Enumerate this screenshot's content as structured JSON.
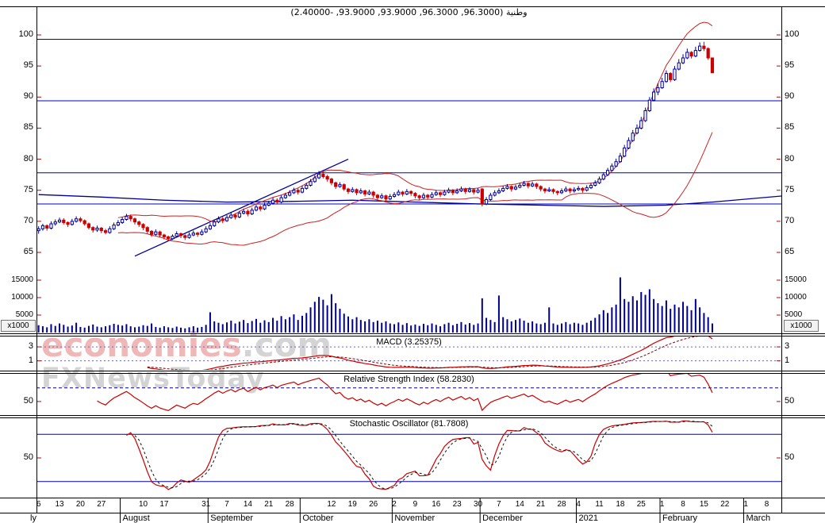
{
  "title": {
    "text": "وطنية (96.3000, 96.3000, 93.9000, 93.9000, -2.40000)"
  },
  "watermark": {
    "brand": "economies",
    "domain": ".com",
    "tagline": "FXNewsToday"
  },
  "panels": {
    "macd": {
      "title": "MACD (3.25375)"
    },
    "rsi": {
      "title": "Relative Strength Index (58.2830)"
    },
    "stoch": {
      "title": "Stochastic Oscillator (81.7808)"
    }
  },
  "chart_data": {
    "type": "candlestick",
    "symbol": "وطنية",
    "last_quote": {
      "open": 96.3,
      "high": 96.3,
      "low": 93.9,
      "close": 93.9,
      "change": -2.4
    },
    "price_ticks": [
      100,
      95,
      90,
      85,
      80,
      75,
      70,
      65
    ],
    "horizontal_lines": [
      99.3,
      89.4,
      77.8,
      72.8
    ],
    "volume_ticks": [
      15000,
      10000,
      5000
    ],
    "volume_unit": "x1000",
    "ohlc": [
      [
        68.5,
        69.2,
        68.0,
        68.8
      ],
      [
        68.8,
        69.6,
        68.5,
        69.3
      ],
      [
        69.3,
        69.5,
        68.5,
        68.9
      ],
      [
        68.9,
        70.0,
        68.7,
        69.6
      ],
      [
        69.6,
        70.3,
        69.3,
        69.9
      ],
      [
        69.9,
        70.6,
        69.7,
        70.2
      ],
      [
        70.2,
        70.5,
        69.5,
        69.8
      ],
      [
        69.8,
        70.0,
        69.1,
        69.5
      ],
      [
        69.5,
        70.4,
        69.3,
        70.0
      ],
      [
        70.0,
        70.8,
        69.8,
        70.4
      ],
      [
        70.4,
        70.7,
        69.8,
        70.1
      ],
      [
        70.1,
        70.3,
        69.3,
        69.6
      ],
      [
        69.6,
        69.8,
        68.7,
        69.0
      ],
      [
        69.0,
        69.2,
        68.2,
        68.6
      ],
      [
        68.6,
        69.3,
        68.3,
        68.9
      ],
      [
        68.9,
        69.1,
        68.1,
        68.5
      ],
      [
        68.5,
        68.8,
        67.9,
        68.2
      ],
      [
        68.2,
        69.2,
        68.0,
        68.8
      ],
      [
        68.8,
        69.8,
        68.6,
        69.4
      ],
      [
        69.4,
        70.2,
        69.2,
        69.8
      ],
      [
        69.8,
        70.7,
        69.6,
        70.3
      ],
      [
        70.3,
        71.2,
        70.1,
        70.8
      ],
      [
        70.8,
        71.1,
        70.0,
        70.4
      ],
      [
        70.4,
        70.6,
        69.5,
        69.9
      ],
      [
        69.9,
        70.1,
        69.1,
        69.5
      ],
      [
        69.5,
        69.7,
        68.6,
        69.0
      ],
      [
        69.0,
        69.2,
        68.0,
        68.4
      ],
      [
        68.4,
        68.6,
        67.5,
        67.9
      ],
      [
        67.9,
        68.7,
        67.7,
        68.3
      ],
      [
        68.3,
        68.5,
        67.4,
        67.8
      ],
      [
        67.8,
        68.0,
        67.1,
        67.5
      ],
      [
        67.5,
        67.7,
        66.8,
        67.2
      ],
      [
        67.2,
        67.9,
        67.0,
        67.6
      ],
      [
        67.6,
        68.4,
        67.4,
        68.0
      ],
      [
        68.0,
        68.2,
        67.3,
        67.7
      ],
      [
        67.7,
        67.9,
        67.0,
        67.4
      ],
      [
        67.4,
        68.2,
        67.2,
        67.8
      ],
      [
        67.8,
        68.5,
        67.6,
        68.1
      ],
      [
        68.1,
        68.3,
        67.5,
        67.9
      ],
      [
        67.9,
        68.7,
        67.7,
        68.3
      ],
      [
        68.3,
        69.2,
        68.1,
        68.8
      ],
      [
        68.8,
        69.7,
        68.6,
        69.3
      ],
      [
        69.3,
        70.3,
        69.1,
        69.9
      ],
      [
        69.9,
        70.8,
        69.7,
        70.4
      ],
      [
        70.4,
        70.7,
        69.7,
        70.1
      ],
      [
        70.1,
        71.0,
        69.9,
        70.6
      ],
      [
        70.6,
        71.4,
        70.4,
        71.0
      ],
      [
        71.0,
        71.3,
        70.3,
        70.7
      ],
      [
        70.7,
        71.7,
        70.5,
        71.3
      ],
      [
        71.3,
        72.0,
        71.1,
        71.6
      ],
      [
        71.6,
        71.9,
        70.8,
        71.2
      ],
      [
        71.2,
        72.2,
        71.0,
        71.8
      ],
      [
        71.8,
        72.7,
        71.6,
        72.3
      ],
      [
        72.3,
        72.6,
        71.6,
        72.0
      ],
      [
        72.0,
        73.0,
        71.8,
        72.6
      ],
      [
        72.6,
        73.3,
        72.4,
        72.9
      ],
      [
        72.9,
        73.8,
        72.7,
        73.4
      ],
      [
        73.4,
        73.7,
        72.7,
        73.1
      ],
      [
        73.1,
        74.2,
        72.9,
        73.8
      ],
      [
        73.8,
        74.6,
        73.6,
        74.2
      ],
      [
        74.2,
        75.0,
        74.0,
        74.6
      ],
      [
        74.6,
        75.4,
        74.4,
        75.0
      ],
      [
        75.0,
        75.3,
        74.3,
        74.7
      ],
      [
        74.7,
        75.7,
        74.5,
        75.3
      ],
      [
        75.3,
        76.2,
        75.1,
        75.8
      ],
      [
        75.8,
        76.8,
        75.6,
        76.4
      ],
      [
        76.4,
        77.4,
        76.2,
        77.0
      ],
      [
        77.0,
        78.1,
        76.8,
        77.6
      ],
      [
        77.6,
        78.3,
        76.9,
        77.2
      ],
      [
        77.2,
        77.5,
        76.4,
        76.8
      ],
      [
        76.8,
        77.0,
        75.8,
        76.2
      ],
      [
        76.2,
        76.4,
        75.2,
        75.6
      ],
      [
        75.6,
        76.3,
        75.4,
        75.9
      ],
      [
        75.9,
        76.1,
        74.9,
        75.2
      ],
      [
        75.2,
        75.4,
        74.4,
        74.8
      ],
      [
        74.8,
        75.5,
        74.6,
        75.1
      ],
      [
        75.1,
        75.3,
        74.2,
        74.6
      ],
      [
        74.6,
        75.3,
        74.4,
        74.9
      ],
      [
        74.9,
        75.1,
        74.0,
        74.4
      ],
      [
        74.4,
        75.1,
        74.2,
        74.7
      ],
      [
        74.7,
        74.9,
        73.8,
        74.2
      ],
      [
        74.2,
        74.4,
        73.4,
        73.8
      ],
      [
        73.8,
        74.5,
        73.6,
        74.1
      ],
      [
        74.1,
        74.3,
        73.2,
        73.6
      ],
      [
        73.6,
        74.4,
        73.4,
        74.0
      ],
      [
        74.0,
        74.7,
        73.8,
        74.3
      ],
      [
        74.3,
        75.1,
        74.1,
        74.7
      ],
      [
        74.7,
        74.9,
        74.0,
        74.4
      ],
      [
        74.4,
        75.2,
        74.2,
        74.8
      ],
      [
        74.8,
        75.0,
        74.1,
        74.5
      ],
      [
        74.5,
        74.7,
        73.7,
        74.1
      ],
      [
        74.1,
        74.3,
        73.4,
        73.8
      ],
      [
        73.8,
        74.6,
        73.6,
        74.2
      ],
      [
        74.2,
        74.4,
        73.5,
        73.9
      ],
      [
        73.9,
        74.7,
        73.7,
        74.3
      ],
      [
        74.3,
        75.0,
        74.1,
        74.6
      ],
      [
        74.6,
        74.8,
        73.9,
        74.3
      ],
      [
        74.3,
        75.1,
        74.1,
        74.7
      ],
      [
        74.7,
        75.4,
        74.5,
        75.0
      ],
      [
        75.0,
        75.2,
        74.2,
        74.6
      ],
      [
        74.6,
        75.3,
        74.4,
        74.9
      ],
      [
        74.9,
        75.6,
        74.7,
        75.2
      ],
      [
        75.2,
        75.4,
        74.4,
        74.8
      ],
      [
        74.8,
        75.5,
        74.6,
        75.1
      ],
      [
        75.1,
        75.3,
        74.3,
        74.7
      ],
      [
        74.7,
        75.4,
        74.5,
        75.0
      ],
      [
        75.2,
        75.4,
        72.4,
        72.8
      ],
      [
        72.8,
        73.9,
        72.6,
        73.5
      ],
      [
        73.5,
        74.6,
        73.3,
        74.2
      ],
      [
        74.2,
        75.0,
        74.0,
        74.6
      ],
      [
        74.6,
        75.3,
        74.4,
        74.9
      ],
      [
        74.9,
        75.7,
        74.7,
        75.3
      ],
      [
        75.3,
        76.0,
        75.1,
        75.6
      ],
      [
        75.6,
        75.8,
        74.8,
        75.2
      ],
      [
        75.2,
        75.9,
        75.0,
        75.5
      ],
      [
        75.5,
        76.2,
        75.3,
        75.8
      ],
      [
        75.8,
        76.5,
        75.6,
        76.1
      ],
      [
        76.1,
        76.3,
        75.3,
        75.7
      ],
      [
        75.7,
        76.4,
        75.5,
        76.0
      ],
      [
        76.0,
        76.2,
        75.2,
        75.6
      ],
      [
        75.6,
        75.8,
        74.8,
        75.2
      ],
      [
        75.2,
        75.4,
        74.5,
        74.9
      ],
      [
        74.9,
        75.5,
        74.7,
        75.1
      ],
      [
        75.1,
        75.3,
        74.4,
        74.8
      ],
      [
        74.8,
        75.0,
        74.2,
        74.6
      ],
      [
        74.6,
        75.3,
        74.4,
        74.9
      ],
      [
        74.9,
        75.6,
        74.7,
        75.2
      ],
      [
        75.2,
        75.4,
        74.5,
        74.9
      ],
      [
        74.9,
        75.5,
        74.6,
        75.1
      ],
      [
        75.1,
        75.7,
        74.9,
        75.3
      ],
      [
        75.3,
        75.5,
        74.6,
        75.0
      ],
      [
        75.0,
        75.8,
        74.8,
        75.4
      ],
      [
        75.4,
        76.2,
        75.2,
        75.8
      ],
      [
        75.8,
        76.6,
        75.6,
        76.2
      ],
      [
        76.2,
        77.2,
        76.0,
        76.8
      ],
      [
        76.8,
        77.9,
        76.6,
        77.5
      ],
      [
        77.5,
        78.6,
        77.3,
        78.2
      ],
      [
        78.2,
        79.3,
        78.0,
        78.9
      ],
      [
        78.9,
        80.1,
        78.7,
        79.6
      ],
      [
        79.6,
        81.0,
        79.4,
        80.5
      ],
      [
        80.5,
        82.3,
        80.3,
        81.8
      ],
      [
        81.8,
        83.5,
        81.6,
        83.0
      ],
      [
        83.0,
        84.7,
        82.8,
        84.2
      ],
      [
        84.2,
        85.6,
        84.0,
        85.0
      ],
      [
        85.0,
        86.8,
        84.8,
        86.2
      ],
      [
        86.2,
        88.3,
        86.0,
        87.8
      ],
      [
        87.8,
        90.0,
        87.6,
        89.5
      ],
      [
        89.5,
        91.4,
        89.3,
        90.8
      ],
      [
        90.8,
        92.2,
        90.3,
        91.5
      ],
      [
        91.5,
        93.1,
        91.3,
        92.5
      ],
      [
        92.5,
        94.3,
        92.3,
        93.8
      ],
      [
        93.8,
        94.0,
        92.4,
        92.8
      ],
      [
        92.8,
        95.0,
        92.6,
        94.5
      ],
      [
        94.5,
        96.1,
        94.3,
        95.5
      ],
      [
        95.5,
        96.9,
        95.3,
        96.3
      ],
      [
        96.3,
        97.8,
        96.1,
        97.2
      ],
      [
        97.2,
        97.4,
        96.2,
        96.6
      ],
      [
        96.6,
        98.1,
        96.4,
        97.5
      ],
      [
        97.5,
        98.8,
        97.3,
        98.2
      ],
      [
        98.2,
        98.9,
        97.4,
        97.8
      ],
      [
        97.8,
        98.0,
        96.0,
        96.3
      ],
      [
        96.3,
        96.3,
        93.9,
        93.9
      ]
    ],
    "volume": [
      2100,
      1800,
      1500,
      2400,
      1900,
      2600,
      2200,
      1700,
      2000,
      2800,
      1600,
      1400,
      1900,
      2300,
      1700,
      1500,
      1800,
      2100,
      2500,
      2200,
      2000,
      2400,
      1800,
      1500,
      1700,
      2100,
      1900,
      2600,
      1600,
      1400,
      1800,
      1500,
      1300,
      1700,
      1400,
      1200,
      1500,
      1800,
      1400,
      1600,
      2200,
      5800,
      3200,
      2800,
      2400,
      2900,
      3400,
      2600,
      3100,
      3600,
      2700,
      3300,
      3900,
      2800,
      3500,
      3000,
      4200,
      3400,
      4700,
      3800,
      4400,
      5200,
      3600,
      4800,
      5600,
      7200,
      8800,
      10200,
      9400,
      7800,
      11000,
      8400,
      6800,
      5400,
      4600,
      3800,
      4400,
      3600,
      3200,
      3800,
      3000,
      3400,
      2800,
      3200,
      2600,
      2400,
      2900,
      2200,
      2700,
      2000,
      2300,
      1900,
      2500,
      2100,
      2600,
      2200,
      1800,
      2400,
      2800,
      2100,
      2500,
      3000,
      2300,
      2700,
      2200,
      2600,
      9800,
      4200,
      3600,
      3000,
      10600,
      4400,
      3800,
      3200,
      3600,
      4000,
      3400,
      2800,
      3200,
      2600,
      2400,
      2800,
      7200,
      2600,
      2200,
      2600,
      3000,
      2400,
      2800,
      2600,
      2200,
      2800,
      3400,
      4200,
      5200,
      6400,
      5600,
      7200,
      8000,
      15800,
      9600,
      8800,
      10400,
      9200,
      11600,
      10800,
      12400,
      9600,
      8400,
      7600,
      9200,
      6800,
      8000,
      7200,
      8800,
      7600,
      6400,
      9600,
      7200,
      5600,
      4400,
      2600
    ],
    "overlays": {
      "ma_blue": [
        [
          0,
          74.3
        ],
        [
          15,
          73.9
        ],
        [
          30,
          73.4
        ],
        [
          45,
          73.1
        ],
        [
          60,
          73.2
        ],
        [
          75,
          73.4
        ],
        [
          90,
          73.1
        ],
        [
          105,
          72.8
        ],
        [
          120,
          72.6
        ],
        [
          135,
          72.4
        ],
        [
          150,
          72.6
        ],
        [
          161,
          73.1
        ],
        [
          178,
          74.1
        ]
      ],
      "trendline_blue": [
        [
          23,
          64.4
        ],
        [
          74,
          80.0
        ]
      ],
      "bollinger": {
        "period": 20,
        "stddev": 2
      }
    },
    "indicators": {
      "macd": {
        "fast": 12,
        "slow": 26,
        "signal": 9,
        "last": 3.25375,
        "grid": [
          3,
          1
        ]
      },
      "rsi": {
        "period": 14,
        "last": 58.283,
        "grid": [
          50
        ],
        "dashed_level": 70
      },
      "stoch": {
        "period": 20,
        "slowing": 3,
        "signal_period": 3,
        "last": 81.7808,
        "grid": [
          50
        ],
        "levels": [
          80,
          20
        ]
      }
    },
    "x_ticks": [
      {
        "d": 0,
        "label": "6"
      },
      {
        "d": 5,
        "label": "13"
      },
      {
        "d": 10,
        "label": "20"
      },
      {
        "d": 15,
        "label": "27"
      },
      {
        "d": 25,
        "label": "10"
      },
      {
        "d": 30,
        "label": "17"
      },
      {
        "d": 40,
        "label": "31"
      },
      {
        "d": 45,
        "label": "7"
      },
      {
        "d": 50,
        "label": "14"
      },
      {
        "d": 55,
        "label": "21"
      },
      {
        "d": 60,
        "label": "28"
      },
      {
        "d": 70,
        "label": "12"
      },
      {
        "d": 75,
        "label": "19"
      },
      {
        "d": 80,
        "label": "26"
      },
      {
        "d": 85,
        "label": "2"
      },
      {
        "d": 90,
        "label": "9"
      },
      {
        "d": 95,
        "label": "16"
      },
      {
        "d": 100,
        "label": "23"
      },
      {
        "d": 105,
        "label": "30"
      },
      {
        "d": 110,
        "label": "7"
      },
      {
        "d": 115,
        "label": "14"
      },
      {
        "d": 120,
        "label": "21"
      },
      {
        "d": 125,
        "label": "28"
      },
      {
        "d": 129,
        "label": "4"
      },
      {
        "d": 134,
        "label": "11"
      },
      {
        "d": 139,
        "label": "18"
      },
      {
        "d": 144,
        "label": "25"
      },
      {
        "d": 149,
        "label": "1"
      },
      {
        "d": 154,
        "label": "8"
      },
      {
        "d": 159,
        "label": "15"
      },
      {
        "d": 164,
        "label": "22"
      },
      {
        "d": 169,
        "label": "1"
      },
      {
        "d": 174,
        "label": "8"
      }
    ],
    "month_separators": [
      20,
      41,
      63,
      85,
      106,
      129,
      149,
      169
    ],
    "month_labels": [
      {
        "x": 38,
        "label": "ly"
      },
      {
        "d": 20,
        "label": "August"
      },
      {
        "d": 41,
        "label": "September"
      },
      {
        "d": 63,
        "label": "October"
      },
      {
        "d": 85,
        "label": "November"
      },
      {
        "d": 106,
        "label": "December"
      },
      {
        "d": 129,
        "label": "2021"
      },
      {
        "d": 149,
        "label": "February"
      },
      {
        "d": 169,
        "label": "March"
      }
    ]
  }
}
